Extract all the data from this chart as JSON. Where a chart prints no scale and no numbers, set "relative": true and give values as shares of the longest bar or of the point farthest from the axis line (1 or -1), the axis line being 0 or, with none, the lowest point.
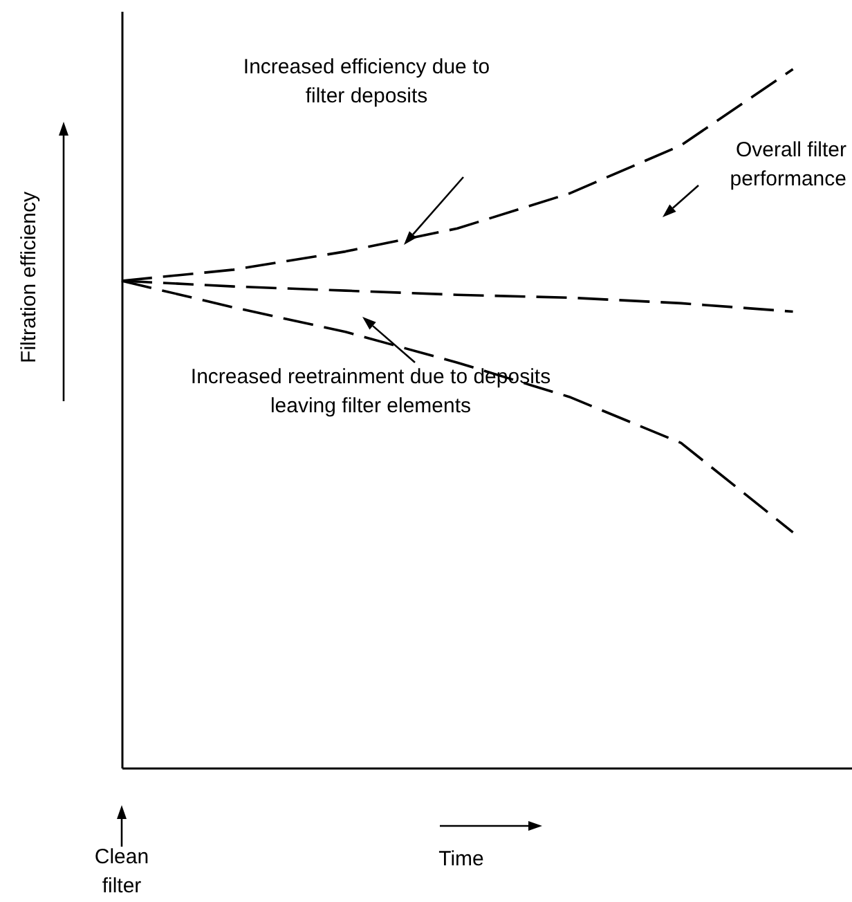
{
  "chart_data": {
    "type": "line",
    "relative": true,
    "xlabel": "Time",
    "ylabel": "Filtration efficiency",
    "categories": [
      null,
      null,
      null,
      null,
      null,
      null,
      null
    ],
    "series": [
      {
        "color": "#000000",
        "line_style": "dashed",
        "values": [
          0.697,
          0.713,
          0.739,
          0.772,
          0.822,
          0.891,
          1
        ]
      },
      {
        "color": "#000000",
        "line_style": "dashed",
        "values": [
          0.697,
          0.689,
          0.683,
          0.677,
          0.673,
          0.665,
          0.653
        ]
      },
      {
        "color": "#000000",
        "line_style": "dashed",
        "values": [
          0.697,
          0.659,
          0.624,
          0.58,
          0.531,
          0.465,
          0.337
        ]
      }
    ],
    "annotations": [
      "Increased efficiency due to filter deposits",
      "Overall filter performance",
      "Increased reetrainment due to deposits leaving filter elements",
      "Clean filter"
    ],
    "grid": false,
    "marker": "none"
  }
}
